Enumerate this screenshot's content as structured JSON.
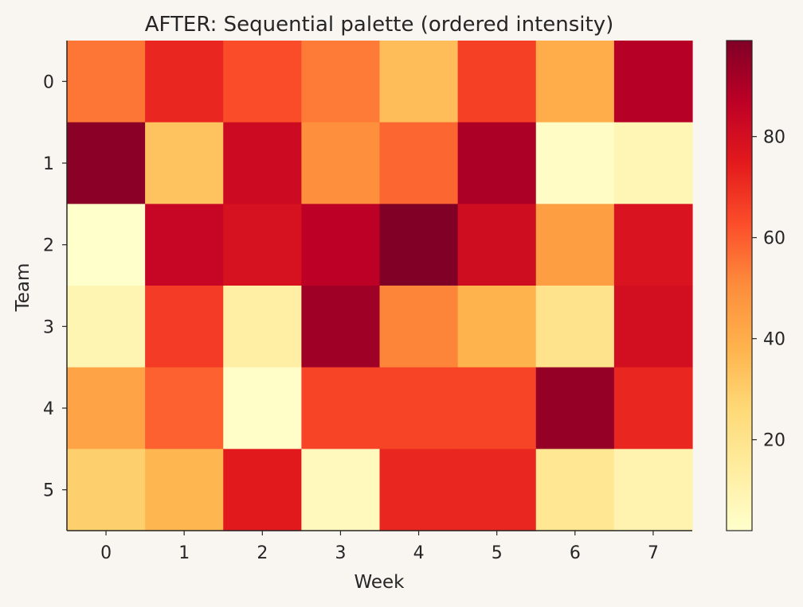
{
  "chart_data": {
    "type": "heatmap",
    "title": "AFTER: Sequential palette (ordered intensity)",
    "xlabel": "Week",
    "ylabel": "Team",
    "x_categories": [
      "0",
      "1",
      "2",
      "3",
      "4",
      "5",
      "6",
      "7"
    ],
    "y_categories": [
      "0",
      "1",
      "2",
      "3",
      "4",
      "5"
    ],
    "values": [
      [
        55,
        72,
        63,
        54,
        35,
        66,
        40,
        88
      ],
      [
        97,
        33,
        82,
        50,
        58,
        90,
        4,
        8
      ],
      [
        2,
        84,
        79,
        87,
        99,
        81,
        45,
        78
      ],
      [
        9,
        67,
        13,
        93,
        52,
        38,
        20,
        80
      ],
      [
        43,
        59,
        3,
        65,
        65,
        65,
        95,
        72
      ],
      [
        29,
        37,
        75,
        6,
        72,
        72,
        18,
        10
      ]
    ],
    "colormap": "YlOrRd",
    "vmin": 2,
    "vmax": 99,
    "colorbar": {
      "ticks": [
        "20",
        "40",
        "60",
        "80"
      ],
      "tick_values": [
        20,
        40,
        60,
        80
      ]
    },
    "grid": false
  }
}
